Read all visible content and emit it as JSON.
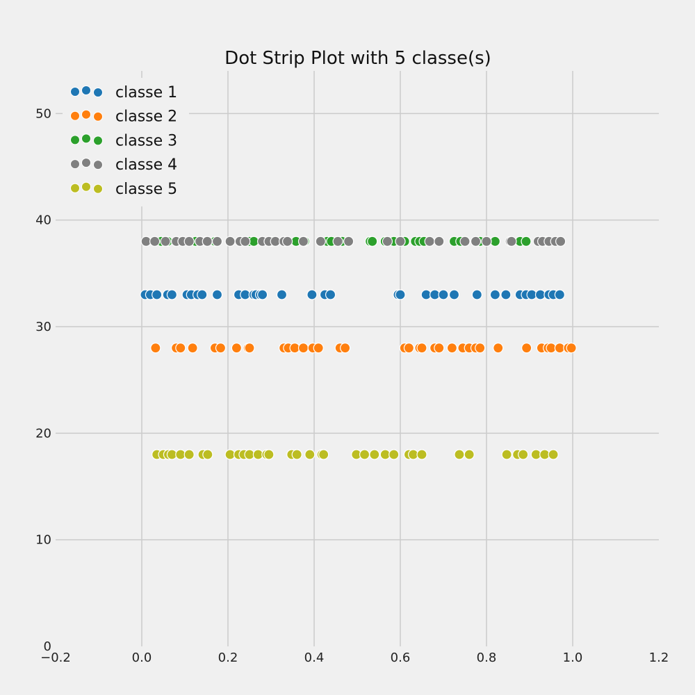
{
  "chart_data": {
    "type": "scatter",
    "title": "Dot Strip Plot with 5 classe(s)",
    "xlabel": "",
    "ylabel": "",
    "xlim": [
      -0.2,
      1.2
    ],
    "ylim": [
      0,
      54
    ],
    "x_ticks": [
      "−0.2",
      "0.0",
      "0.2",
      "0.4",
      "0.6",
      "0.8",
      "1.0",
      "1.2"
    ],
    "x_tick_values": [
      -0.2,
      0.0,
      0.2,
      0.4,
      0.6,
      0.8,
      1.0,
      1.2
    ],
    "y_ticks": [
      "0",
      "10",
      "20",
      "30",
      "40",
      "50"
    ],
    "y_tick_values": [
      0,
      10,
      20,
      30,
      40,
      50
    ],
    "grid": true,
    "legend_position": "top-left",
    "series": [
      {
        "name": "classe 1",
        "color": "#1f77b4",
        "y": 33,
        "x": [
          0.008,
          0.02,
          0.035,
          0.06,
          0.07,
          0.105,
          0.115,
          0.13,
          0.14,
          0.175,
          0.225,
          0.24,
          0.26,
          0.265,
          0.275,
          0.28,
          0.325,
          0.395,
          0.425,
          0.438,
          0.595,
          0.6,
          0.66,
          0.68,
          0.7,
          0.725,
          0.778,
          0.82,
          0.845,
          0.878,
          0.892,
          0.905,
          0.925,
          0.945,
          0.955,
          0.97
        ]
      },
      {
        "name": "classe 2",
        "color": "#ff7f0e",
        "y": 28,
        "x": [
          0.032,
          0.08,
          0.09,
          0.118,
          0.17,
          0.183,
          0.22,
          0.247,
          0.25,
          0.33,
          0.34,
          0.355,
          0.375,
          0.397,
          0.41,
          0.46,
          0.472,
          0.61,
          0.62,
          0.645,
          0.65,
          0.68,
          0.69,
          0.72,
          0.745,
          0.76,
          0.775,
          0.785,
          0.827,
          0.893,
          0.928,
          0.943,
          0.95,
          0.97,
          0.99,
          0.997
        ]
      },
      {
        "name": "classe 3",
        "color": "#2ca02c",
        "y": 38,
        "x": [
          0.045,
          0.06,
          0.08,
          0.125,
          0.15,
          0.17,
          0.25,
          0.26,
          0.3,
          0.358,
          0.378,
          0.43,
          0.44,
          0.465,
          0.48,
          0.53,
          0.535,
          0.565,
          0.585,
          0.6,
          0.61,
          0.635,
          0.645,
          0.655,
          0.725,
          0.74,
          0.785,
          0.8,
          0.82,
          0.878,
          0.892,
          0.94
        ]
      },
      {
        "name": "classe 4",
        "color": "#808080",
        "y": 38,
        "x": [
          0.01,
          0.03,
          0.055,
          0.08,
          0.095,
          0.11,
          0.135,
          0.152,
          0.175,
          0.205,
          0.228,
          0.24,
          0.28,
          0.295,
          0.31,
          0.33,
          0.338,
          0.375,
          0.415,
          0.455,
          0.48,
          0.57,
          0.6,
          0.668,
          0.69,
          0.75,
          0.775,
          0.8,
          0.855,
          0.858,
          0.92,
          0.93,
          0.945,
          0.96,
          0.972
        ]
      },
      {
        "name": "classe 5",
        "color": "#bcbd22",
        "y": 18,
        "x": [
          0.035,
          0.05,
          0.062,
          0.07,
          0.09,
          0.11,
          0.142,
          0.153,
          0.205,
          0.225,
          0.237,
          0.25,
          0.27,
          0.29,
          0.295,
          0.348,
          0.36,
          0.39,
          0.418,
          0.422,
          0.498,
          0.517,
          0.54,
          0.565,
          0.585,
          0.62,
          0.63,
          0.65,
          0.737,
          0.76,
          0.847,
          0.872,
          0.885,
          0.915,
          0.935,
          0.955
        ]
      }
    ]
  }
}
